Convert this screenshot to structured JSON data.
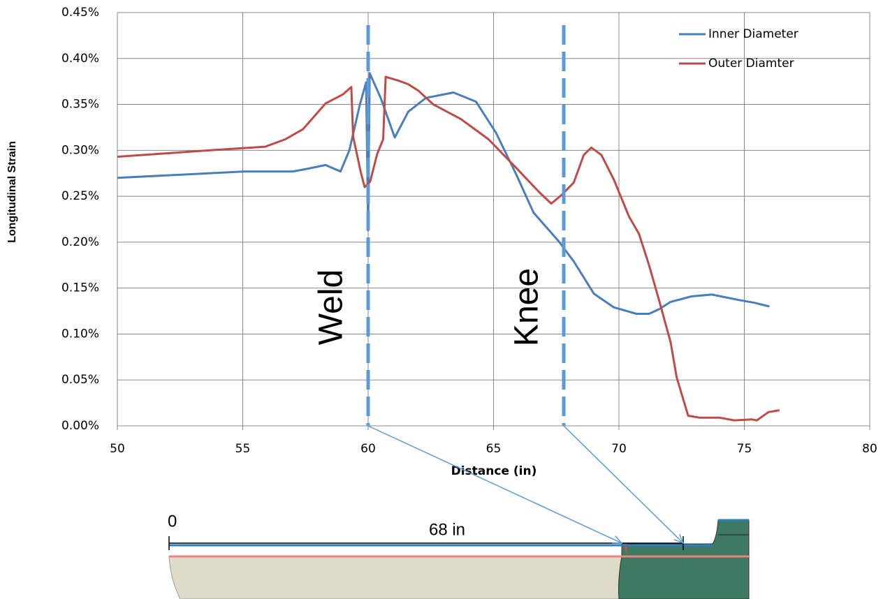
{
  "chart_data": {
    "type": "line",
    "xlabel": "Distance (in)",
    "ylabel": "Longitudinal Strain",
    "xlim": [
      50,
      80
    ],
    "xticks": [
      50,
      55,
      60,
      65,
      70,
      75,
      80
    ],
    "ylim": [
      0,
      0.45
    ],
    "yticks": [
      {
        "value": 0,
        "label": "0.00%"
      },
      {
        "value": 0.05,
        "label": "0.05%"
      },
      {
        "value": 0.1,
        "label": "0.10%"
      },
      {
        "value": 0.15,
        "label": "0.15%"
      },
      {
        "value": 0.2,
        "label": "0.20%"
      },
      {
        "value": 0.25,
        "label": "0.25%"
      },
      {
        "value": 0.3,
        "label": "0.30%"
      },
      {
        "value": 0.35,
        "label": "0.35%"
      },
      {
        "value": 0.4,
        "label": "0.40%"
      },
      {
        "value": 0.45,
        "label": "0.45%"
      }
    ],
    "grid": true,
    "legend": "upper right",
    "series": [
      {
        "name": "Inner Diameter",
        "color": "#4a7ebb",
        "x": [
          50,
          55.07,
          57.0,
          57.6,
          58.3,
          58.9,
          59.25,
          59.67,
          59.92,
          60.0,
          60.06,
          60.5,
          61.06,
          61.6,
          62.3,
          63.4,
          64.3,
          65.1,
          65.9,
          66.6,
          67.6,
          68.2,
          69.0,
          69.8,
          70.7,
          71.2,
          71.6,
          72.06,
          72.9,
          73.7,
          74.8,
          75.4,
          76.0
        ],
        "values": [
          0.27,
          0.277,
          0.277,
          0.28,
          0.284,
          0.277,
          0.3,
          0.35,
          0.374,
          0.213,
          0.384,
          0.357,
          0.314,
          0.342,
          0.357,
          0.363,
          0.353,
          0.319,
          0.274,
          0.232,
          0.201,
          0.179,
          0.144,
          0.129,
          0.122,
          0.122,
          0.127,
          0.135,
          0.141,
          0.143,
          0.137,
          0.134,
          0.13
        ]
      },
      {
        "name": "Outer Diamter",
        "color": "#be4b48",
        "x": [
          50,
          53.7,
          55.9,
          56.7,
          57.4,
          58.3,
          59.0,
          59.33,
          59.4,
          59.7,
          59.86,
          60.08,
          60.36,
          60.6,
          60.7,
          61.2,
          61.6,
          62.0,
          62.6,
          63.7,
          64.8,
          65.9,
          66.8,
          67.3,
          67.7,
          68.2,
          68.6,
          68.9,
          69.3,
          69.8,
          70.4,
          70.8,
          71.2,
          71.6,
          72.06,
          72.3,
          72.76,
          73.2,
          74.0,
          74.6,
          75.3,
          75.5,
          75.96,
          76.4
        ],
        "values": [
          0.293,
          0.3,
          0.304,
          0.312,
          0.323,
          0.351,
          0.361,
          0.369,
          0.315,
          0.277,
          0.26,
          0.266,
          0.296,
          0.312,
          0.38,
          0.376,
          0.372,
          0.365,
          0.35,
          0.334,
          0.312,
          0.281,
          0.255,
          0.242,
          0.251,
          0.265,
          0.295,
          0.303,
          0.295,
          0.268,
          0.228,
          0.209,
          0.175,
          0.137,
          0.091,
          0.053,
          0.011,
          0.009,
          0.009,
          0.006,
          0.007,
          0.006,
          0.015,
          0.017
        ]
      }
    ],
    "annotations": [
      {
        "text": "Weld",
        "x": 60
      },
      {
        "text": "Knee",
        "x": 67.8
      }
    ]
  },
  "diagram": {
    "labels": [
      "0",
      "68 in"
    ]
  }
}
